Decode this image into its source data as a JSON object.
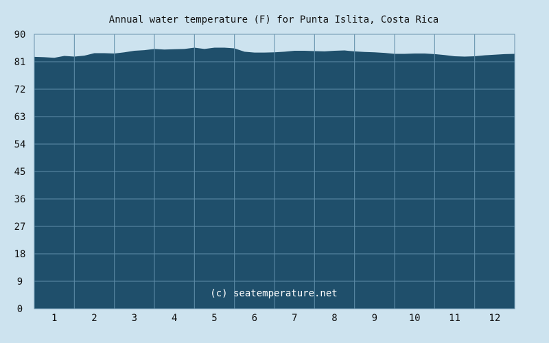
{
  "chart_data": {
    "type": "area",
    "title": "Annual water temperature (F) for Punta Islita, Costa Rica",
    "watermark": "(c) seatemperature.net",
    "x_ticks": [
      "1",
      "2",
      "3",
      "4",
      "5",
      "6",
      "7",
      "8",
      "9",
      "10",
      "11",
      "12"
    ],
    "y_ticks": [
      "0",
      "9",
      "18",
      "27",
      "36",
      "45",
      "54",
      "63",
      "72",
      "81",
      "90"
    ],
    "xlim": [
      0.5,
      12.5
    ],
    "ylim": [
      0,
      90
    ],
    "grid": true,
    "colors": {
      "background": "#cde3ef",
      "fill": "#1f4f6b",
      "grid": "#5f8ea8",
      "border": "#6a93ad"
    },
    "series": [
      {
        "x": [
          0.5,
          0.75,
          1.0,
          1.25,
          1.5,
          1.75,
          2.0,
          2.25,
          2.5,
          2.75,
          3.0,
          3.25,
          3.5,
          3.75,
          4.0,
          4.25,
          4.5,
          4.75,
          5.0,
          5.25,
          5.5,
          5.75,
          6.0,
          6.25,
          6.5,
          6.75,
          7.0,
          7.25,
          7.5,
          7.75,
          8.0,
          8.25,
          8.5,
          8.75,
          9.0,
          9.25,
          9.5,
          9.75,
          10.0,
          10.25,
          10.5,
          10.75,
          11.0,
          11.25,
          11.5,
          11.75,
          12.0,
          12.25,
          12.5
        ],
        "y": [
          82.6,
          82.5,
          82.3,
          82.9,
          82.7,
          83.0,
          83.8,
          83.8,
          83.7,
          84.1,
          84.6,
          84.8,
          85.2,
          85.0,
          85.1,
          85.2,
          85.6,
          85.2,
          85.6,
          85.6,
          85.4,
          84.3,
          84.0,
          84.0,
          84.1,
          84.3,
          84.6,
          84.6,
          84.5,
          84.4,
          84.6,
          84.7,
          84.4,
          84.2,
          84.1,
          83.9,
          83.6,
          83.6,
          83.7,
          83.7,
          83.5,
          83.2,
          82.8,
          82.7,
          82.8,
          83.1,
          83.3,
          83.5,
          83.6
        ]
      }
    ]
  }
}
